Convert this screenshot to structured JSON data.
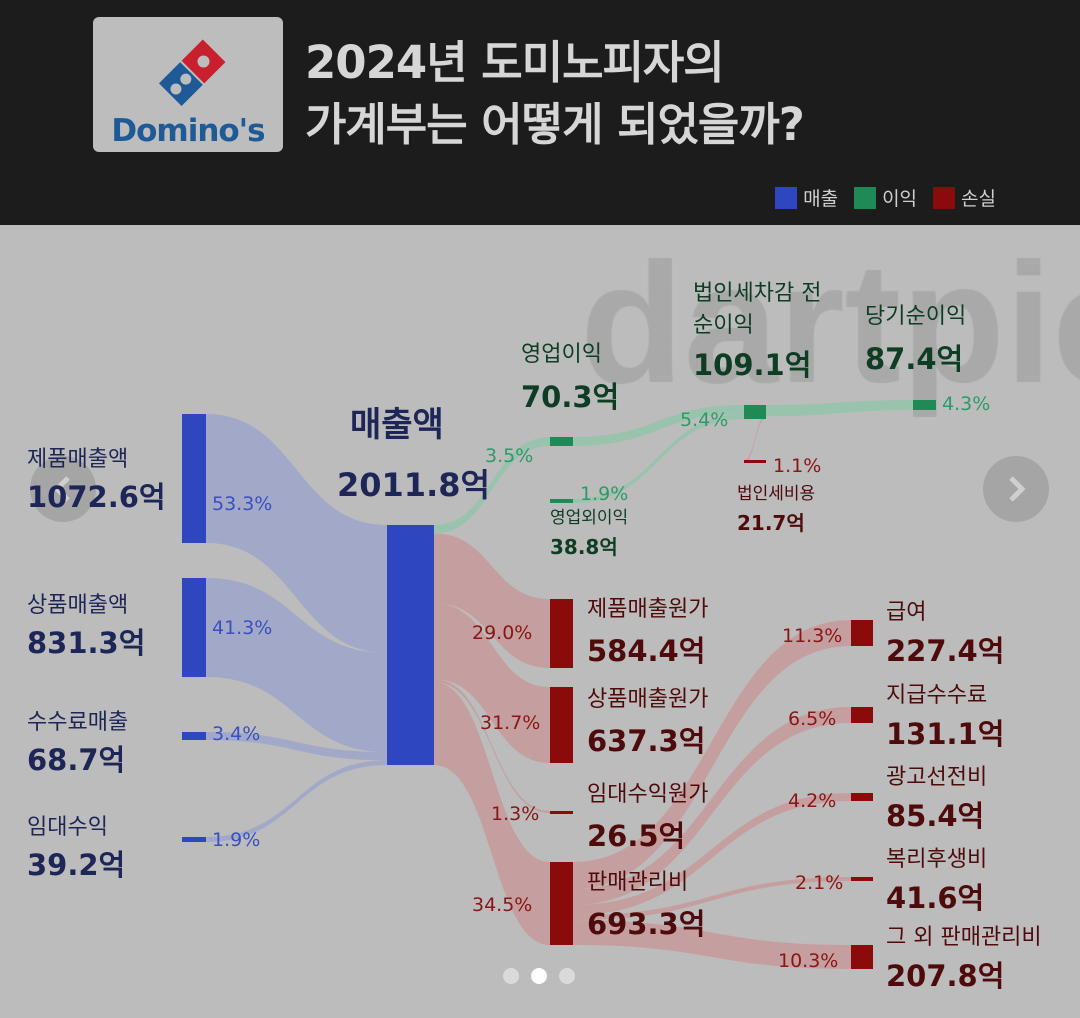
{
  "header": {
    "logo_text": "Domino's",
    "title_line1": "2024년 도미노피자의",
    "title_line2": "가계부는 어떻게 되었을까?"
  },
  "legend": [
    {
      "label": "매출",
      "color": "#2e47c0"
    },
    {
      "label": "이익",
      "color": "#1f8a55"
    },
    {
      "label": "손실",
      "color": "#8b0a0a"
    }
  ],
  "watermark": "dartpic",
  "colors": {
    "revenue": "#2e47c0",
    "profit": "#1f8a55",
    "loss": "#8b0a0a"
  },
  "chart_data": {
    "type": "sankey",
    "title": "2024년 도미노피자의 가계부는 어떻게 되었을까?",
    "unit": "억",
    "nodes": [
      {
        "id": "product_sales",
        "name": "제품매출액",
        "value": "1072.6억",
        "pct": "53.3%",
        "kind": "revenue"
      },
      {
        "id": "goods_sales",
        "name": "상품매출액",
        "value": "831.3억",
        "pct": "41.3%",
        "kind": "revenue"
      },
      {
        "id": "fee_sales",
        "name": "수수료매출",
        "value": "68.7억",
        "pct": "3.4%",
        "kind": "revenue"
      },
      {
        "id": "rent_income",
        "name": "임대수익",
        "value": "39.2억",
        "pct": "1.9%",
        "kind": "revenue"
      },
      {
        "id": "revenue",
        "name": "매출액",
        "value": "2011.8억",
        "kind": "revenue"
      },
      {
        "id": "op_income",
        "name": "영업이익",
        "value": "70.3억",
        "pct": "3.5%",
        "kind": "profit"
      },
      {
        "id": "nonop_income",
        "name": "영업외이익",
        "value": "38.8억",
        "pct": "1.9%",
        "kind": "profit"
      },
      {
        "id": "pretax",
        "name": "법인세차감 전순이익",
        "value": "109.1억",
        "pct": "5.4%",
        "kind": "profit"
      },
      {
        "id": "tax",
        "name": "법인세비용",
        "value": "21.7억",
        "pct": "1.1%",
        "kind": "loss"
      },
      {
        "id": "net",
        "name": "당기순이익",
        "value": "87.4억",
        "pct": "4.3%",
        "kind": "profit"
      },
      {
        "id": "cogs_product",
        "name": "제품매출원가",
        "value": "584.4억",
        "pct": "29.0%",
        "kind": "loss"
      },
      {
        "id": "cogs_goods",
        "name": "상품매출원가",
        "value": "637.3억",
        "pct": "31.7%",
        "kind": "loss"
      },
      {
        "id": "cogs_rent",
        "name": "임대수익원가",
        "value": "26.5억",
        "pct": "1.3%",
        "kind": "loss"
      },
      {
        "id": "sga",
        "name": "판매관리비",
        "value": "693.3억",
        "pct": "34.5%",
        "kind": "loss"
      },
      {
        "id": "salary",
        "name": "급여",
        "value": "227.4억",
        "pct": "11.3%",
        "kind": "loss"
      },
      {
        "id": "fees",
        "name": "지급수수료",
        "value": "131.1억",
        "pct": "6.5%",
        "kind": "loss"
      },
      {
        "id": "ads",
        "name": "광고선전비",
        "value": "85.4억",
        "pct": "4.2%",
        "kind": "loss"
      },
      {
        "id": "welfare",
        "name": "복리후생비",
        "value": "41.6억",
        "pct": "2.1%",
        "kind": "loss"
      },
      {
        "id": "other_sga",
        "name": "그 외 판매관리비",
        "value": "207.8억",
        "pct": "10.3%",
        "kind": "loss"
      }
    ],
    "links": [
      {
        "source": "product_sales",
        "target": "revenue",
        "value": 1072.6
      },
      {
        "source": "goods_sales",
        "target": "revenue",
        "value": 831.3
      },
      {
        "source": "fee_sales",
        "target": "revenue",
        "value": 68.7
      },
      {
        "source": "rent_income",
        "target": "revenue",
        "value": 39.2
      },
      {
        "source": "revenue",
        "target": "op_income",
        "value": 70.3
      },
      {
        "source": "revenue",
        "target": "cogs_product",
        "value": 584.4
      },
      {
        "source": "revenue",
        "target": "cogs_goods",
        "value": 637.3
      },
      {
        "source": "revenue",
        "target": "cogs_rent",
        "value": 26.5
      },
      {
        "source": "revenue",
        "target": "sga",
        "value": 693.3
      },
      {
        "source": "op_income",
        "target": "pretax",
        "value": 70.3
      },
      {
        "source": "nonop_income",
        "target": "pretax",
        "value": 38.8
      },
      {
        "source": "pretax",
        "target": "net",
        "value": 87.4
      },
      {
        "source": "pretax",
        "target": "tax",
        "value": 21.7
      },
      {
        "source": "sga",
        "target": "salary",
        "value": 227.4
      },
      {
        "source": "sga",
        "target": "fees",
        "value": 131.1
      },
      {
        "source": "sga",
        "target": "ads",
        "value": 85.4
      },
      {
        "source": "sga",
        "target": "welfare",
        "value": 41.6
      },
      {
        "source": "sga",
        "target": "other_sga",
        "value": 207.8
      }
    ]
  },
  "carousel": {
    "pages": 3,
    "current": 2
  }
}
